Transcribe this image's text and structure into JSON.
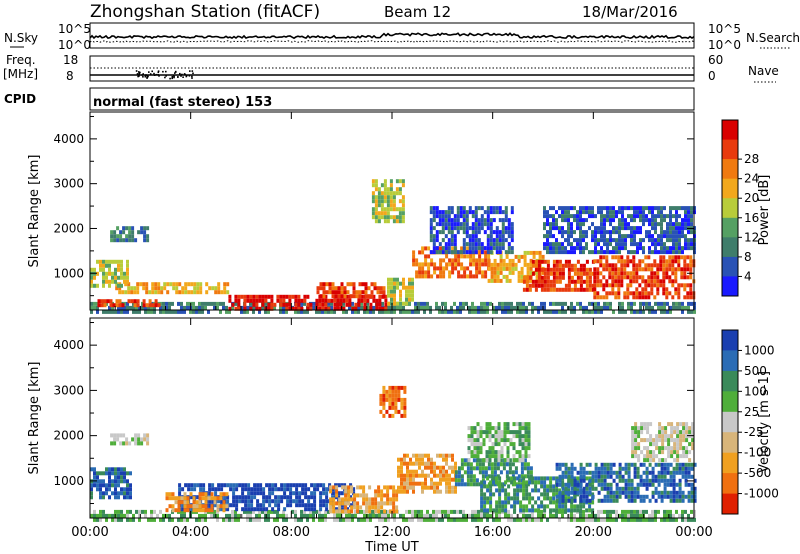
{
  "header": {
    "title": "Zhongshan Station (fitACF)",
    "beam": "Beam 12",
    "date": "18/Mar/2016"
  },
  "strips": {
    "nsky_label": "N.Sky",
    "nsky_ticks": [
      "10^5",
      "10^0"
    ],
    "nsearch_label": "N.Search",
    "nsearch_ticks": [
      "10^5",
      "10^0"
    ],
    "freq_label_top": "Freq.",
    "freq_label_bottom": "[MHz]",
    "freq_ticks": [
      "18",
      "8"
    ],
    "nave_label": "Nave",
    "nave_ticks": [
      "60",
      "0"
    ],
    "cpid_label": "CPID",
    "cpid_text": "normal (fast stereo) 153"
  },
  "chart_data": [
    {
      "type": "heatmap",
      "name": "power-panel",
      "ylabel": "Slant Range [km]",
      "yticks": [
        1000,
        2000,
        3000,
        4000
      ],
      "ylim": [
        180,
        4600
      ],
      "xlim": [
        0,
        24
      ],
      "xticks": [
        "00:00",
        "04:00",
        "08:00",
        "12:00",
        "16:00",
        "20:00",
        "00:00"
      ],
      "colorbar": {
        "label": "Power [dB]",
        "ticks": [
          "4",
          "8",
          "12",
          "16",
          "20",
          "24",
          "28"
        ],
        "colors": [
          "#1a1aff",
          "#2952b5",
          "#3f7d6b",
          "#55a063",
          "#b8cc3a",
          "#f2a81c",
          "#f07a10",
          "#e83a0d",
          "#d90000"
        ]
      },
      "regions": [
        {
          "t": [
            0.0,
            24.0
          ],
          "r": [
            180,
            360
          ],
          "level": 2
        },
        {
          "t": [
            0.3,
            2.7
          ],
          "r": [
            280,
            420
          ],
          "level": 7
        },
        {
          "t": [
            5.5,
            11.8
          ],
          "r": [
            230,
            520
          ],
          "level": 8
        },
        {
          "t": [
            9.0,
            11.7
          ],
          "r": [
            480,
            800
          ],
          "level": 7
        },
        {
          "t": [
            1.0,
            5.5
          ],
          "r": [
            550,
            800
          ],
          "level": 5
        },
        {
          "t": [
            0.0,
            1.5
          ],
          "r": [
            700,
            1300
          ],
          "level": 4
        },
        {
          "t": [
            11.8,
            12.8
          ],
          "r": [
            350,
            900
          ],
          "level": 4
        },
        {
          "t": [
            12.8,
            15.8
          ],
          "r": [
            900,
            1600
          ],
          "level": 6
        },
        {
          "t": [
            15.8,
            18.0
          ],
          "r": [
            800,
            1500
          ],
          "level": 5
        },
        {
          "t": [
            17.2,
            20.0
          ],
          "r": [
            600,
            1300
          ],
          "level": 7
        },
        {
          "t": [
            20.0,
            24.0
          ],
          "r": [
            500,
            1400
          ],
          "level": 7
        },
        {
          "t": [
            0.8,
            2.3
          ],
          "r": [
            1750,
            2050
          ],
          "level": 2
        },
        {
          "t": [
            11.2,
            12.4
          ],
          "r": [
            2200,
            3100
          ],
          "level": 4
        },
        {
          "t": [
            13.5,
            16.8
          ],
          "r": [
            1500,
            2500
          ],
          "level": 1
        },
        {
          "t": [
            18.0,
            24.0
          ],
          "r": [
            1500,
            2500
          ],
          "level": 1
        }
      ]
    },
    {
      "type": "heatmap",
      "name": "velocity-panel",
      "ylabel": "Slant Range [km]",
      "yticks": [
        1000,
        2000,
        3000,
        4000
      ],
      "ylim": [
        180,
        4600
      ],
      "xlim": [
        0,
        24
      ],
      "xticks": [
        "00:00",
        "04:00",
        "08:00",
        "12:00",
        "16:00",
        "20:00",
        "00:00"
      ],
      "xlabel": "Time UT",
      "colorbar": {
        "label": "Velocity [m s-1]",
        "ticks": [
          "1000",
          "500",
          "100",
          "25",
          "-25",
          "-100",
          "-500",
          "-1000"
        ],
        "colors": [
          "#1a3fb0",
          "#2a6cb5",
          "#3a8a5a",
          "#4fae3a",
          "#c8c8c8",
          "#d8b57a",
          "#f0a020",
          "#f07010",
          "#e02000"
        ]
      },
      "regions": [
        {
          "t": [
            0.0,
            24.0
          ],
          "r": [
            180,
            360
          ],
          "level": 3
        },
        {
          "t": [
            0.0,
            1.6
          ],
          "r": [
            600,
            1300
          ],
          "level": 1
        },
        {
          "t": [
            3.5,
            10.5
          ],
          "r": [
            350,
            950
          ],
          "level": 0
        },
        {
          "t": [
            3.0,
            5.5
          ],
          "r": [
            380,
            750
          ],
          "level": 6
        },
        {
          "t": [
            9.5,
            12.2
          ],
          "r": [
            350,
            900
          ],
          "level": 6
        },
        {
          "t": [
            12.2,
            14.5
          ],
          "r": [
            800,
            1600
          ],
          "level": 6
        },
        {
          "t": [
            14.5,
            17.5
          ],
          "r": [
            900,
            1500
          ],
          "level": 2
        },
        {
          "t": [
            15.5,
            20.0
          ],
          "r": [
            350,
            1100
          ],
          "level": 2
        },
        {
          "t": [
            18.5,
            24.0
          ],
          "r": [
            600,
            1400
          ],
          "level": 1
        },
        {
          "t": [
            0.8,
            2.3
          ],
          "r": [
            1800,
            2050
          ],
          "level": 4
        },
        {
          "t": [
            11.5,
            12.5
          ],
          "r": [
            2400,
            3100
          ],
          "level": 7
        },
        {
          "t": [
            15.0,
            17.5
          ],
          "r": [
            1500,
            2300
          ],
          "level": 3
        },
        {
          "t": [
            21.5,
            24.0
          ],
          "r": [
            1500,
            2300
          ],
          "level": 4
        }
      ]
    }
  ]
}
